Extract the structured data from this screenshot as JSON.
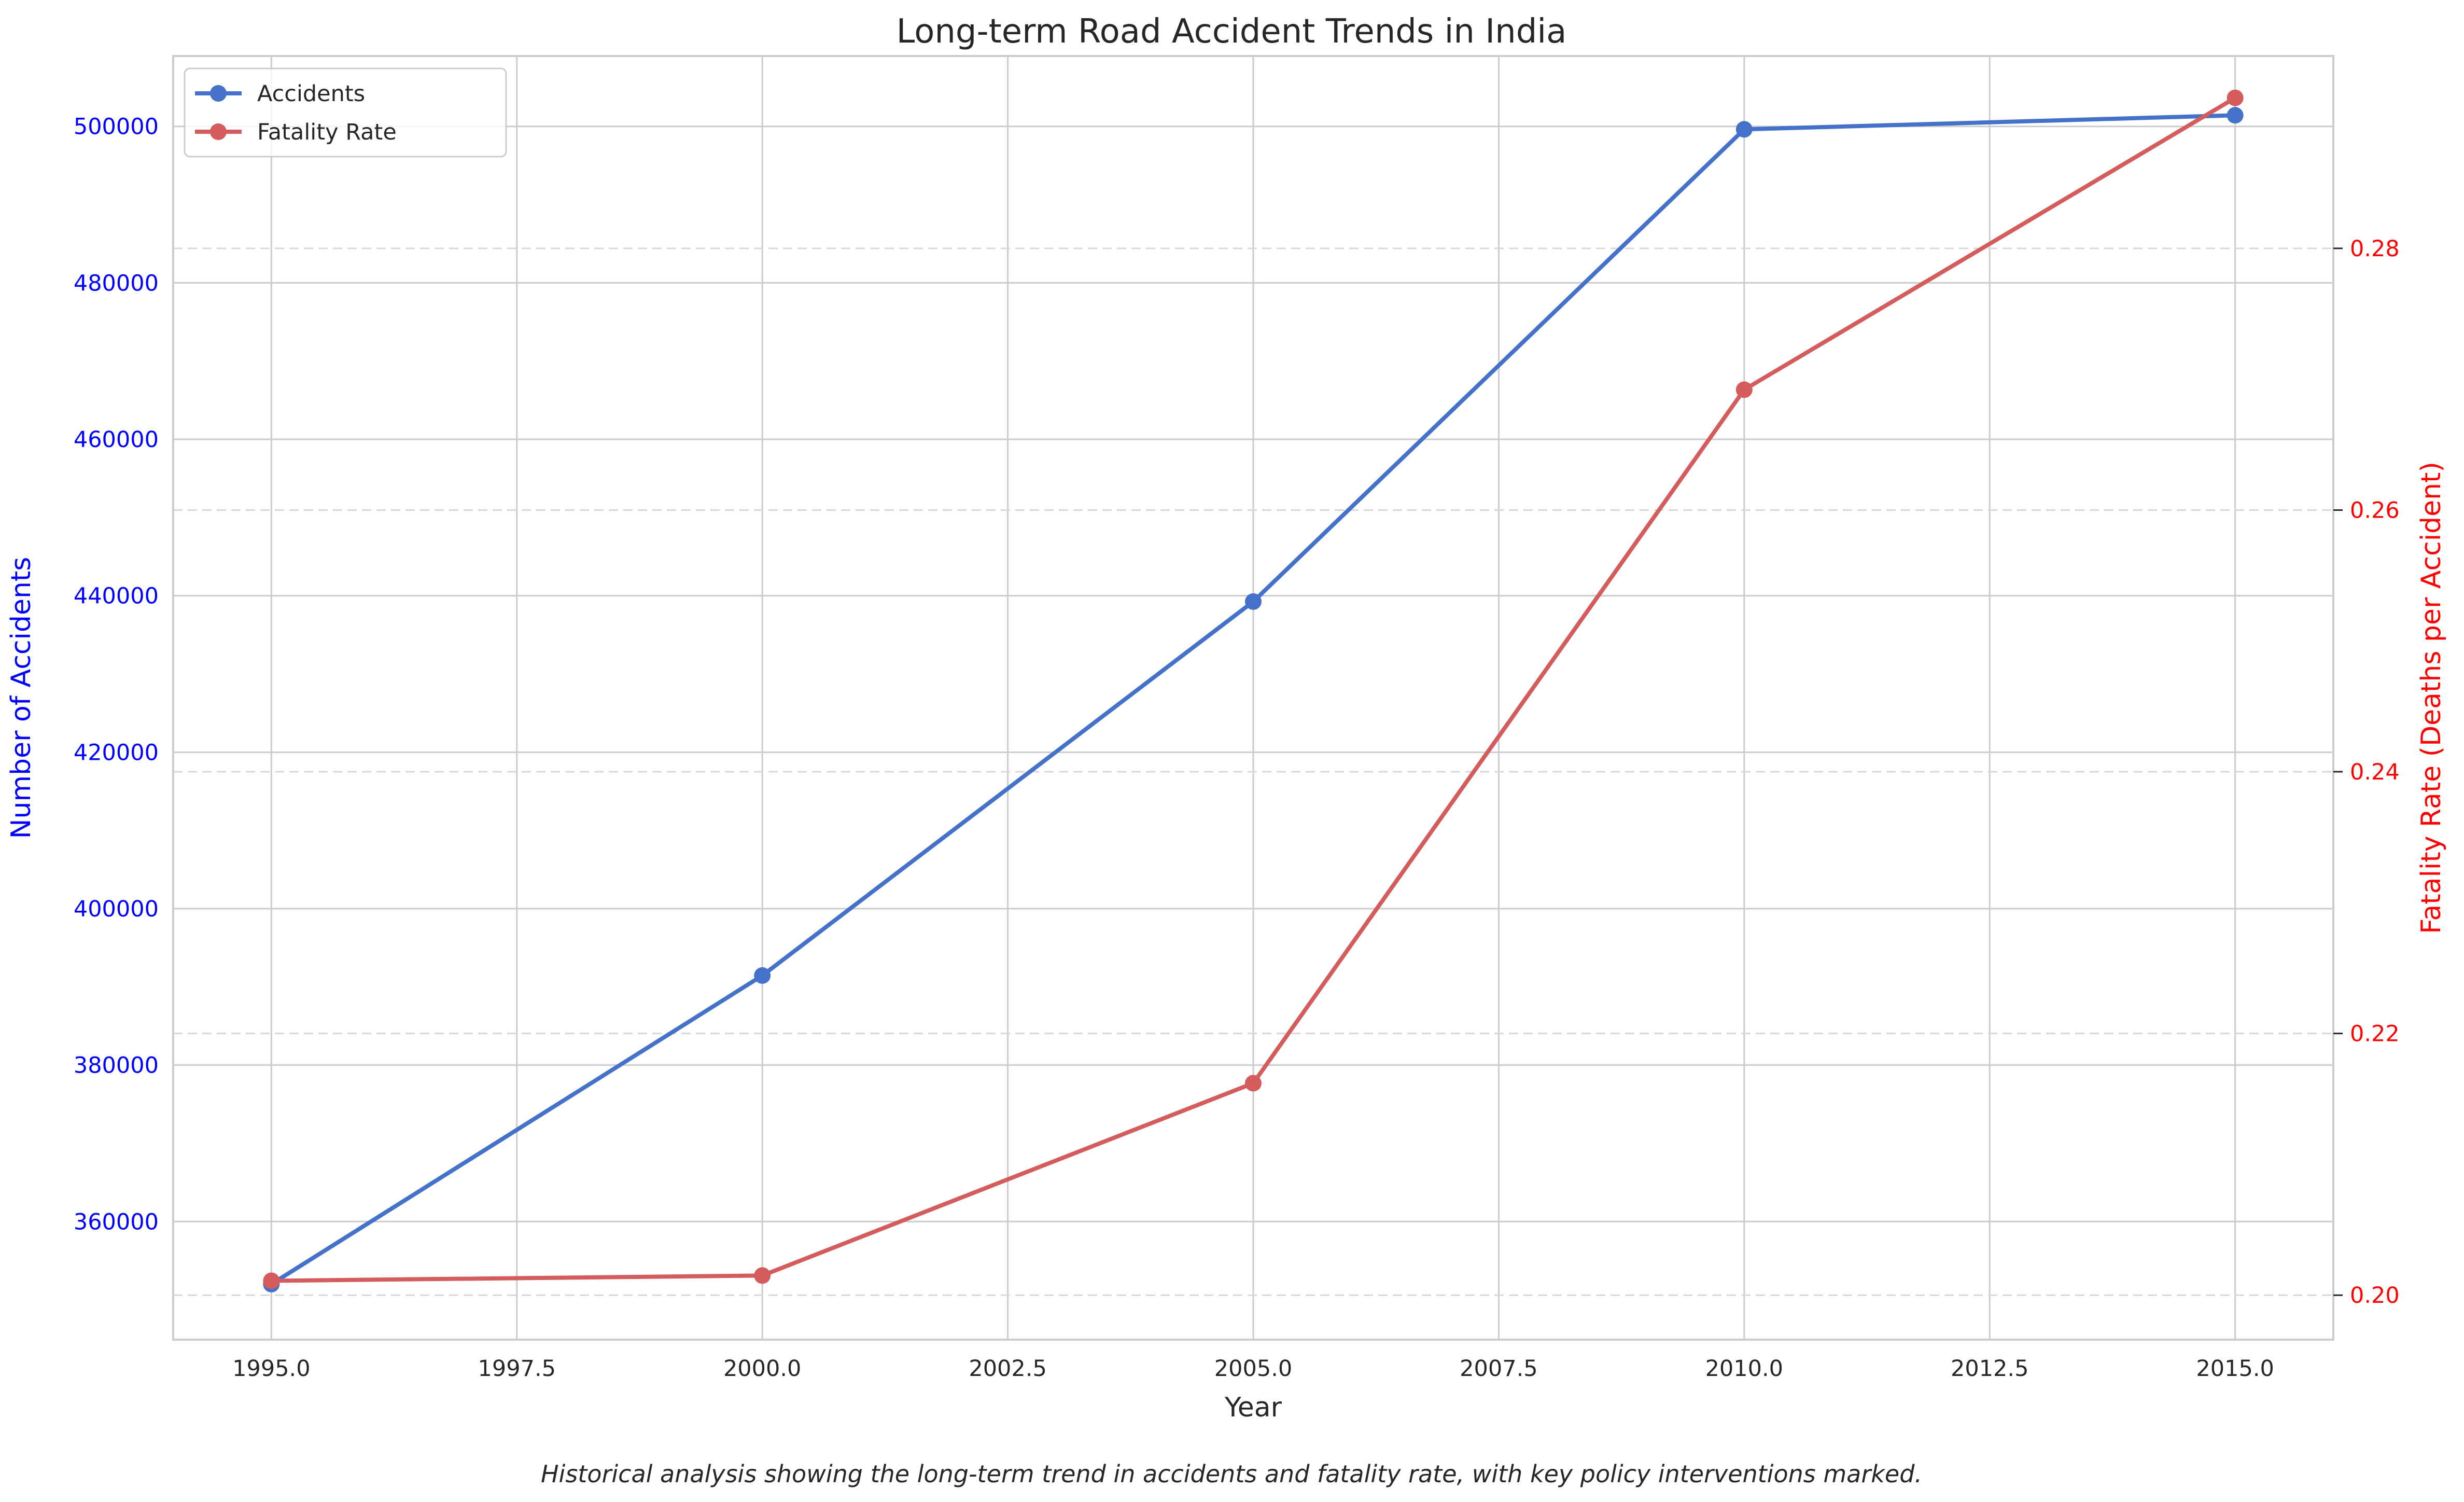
{
  "chart_data": {
    "type": "line",
    "title": "Long-term Road Accident Trends in India",
    "caption": "Historical analysis showing the long-term trend in accidents and fatality rate, with key policy interventions marked.",
    "xlabel": "Year",
    "ylabel_left": "Number of Accidents",
    "ylabel_right": "Fatality Rate (Deaths per Accident)",
    "x": [
      1995,
      2000,
      2005,
      2010,
      2015
    ],
    "x_ticks": [
      "1995.0",
      "1997.5",
      "2000.0",
      "2002.5",
      "2005.0",
      "2007.5",
      "2010.0",
      "2012.5",
      "2015.0"
    ],
    "x_tick_values": [
      1995,
      1997.5,
      2000,
      2002.5,
      2005,
      2007.5,
      2010,
      2012.5,
      2015
    ],
    "xlim": [
      1994,
      2016
    ],
    "y_left_ticks": [
      "360000",
      "380000",
      "400000",
      "420000",
      "440000",
      "460000",
      "480000",
      "500000"
    ],
    "y_left_tick_values": [
      360000,
      380000,
      400000,
      420000,
      440000,
      460000,
      480000,
      500000
    ],
    "y_left_lim": [
      344900,
      509000
    ],
    "y_right_ticks": [
      "0.20",
      "0.22",
      "0.24",
      "0.26",
      "0.28"
    ],
    "y_right_tick_values": [
      0.2,
      0.22,
      0.24,
      0.26,
      0.28
    ],
    "y_right_lim": [
      0.1966,
      0.2947
    ],
    "grid": true,
    "legend_position": "top-left",
    "series": [
      {
        "name": "Accidents",
        "axis": "left",
        "color": "#4472ca",
        "values": [
          351999,
          391449,
          439255,
          499628,
          501423
        ]
      },
      {
        "name": "Fatality Rate",
        "axis": "right",
        "color": "#d45c5c",
        "values": [
          0.2011,
          0.2015,
          0.2162,
          0.2692,
          0.2915
        ]
      }
    ],
    "left_axis_color": "#0000ff",
    "right_axis_color": "#ff0000"
  }
}
